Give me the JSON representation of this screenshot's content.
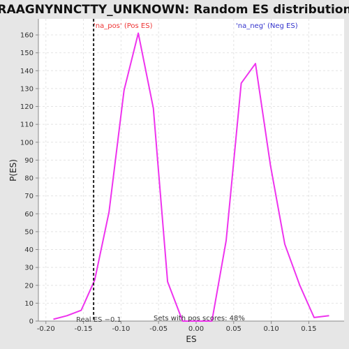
{
  "chart_data": {
    "type": "line",
    "title": "RAAGNYNNCTTY_UNKNOWN: Random ES distribution",
    "xlabel": "ES",
    "ylabel": "P(ES)",
    "xlim": [
      -0.21,
      0.197
    ],
    "ylim": [
      0,
      169
    ],
    "x_ticks": [
      -0.2,
      -0.15,
      -0.1,
      -0.05,
      0.0,
      0.05,
      0.1,
      0.15
    ],
    "x_tick_labels": [
      "-0.20",
      "-0.15",
      "-0.10",
      "-0.05",
      "0.00",
      "0.05",
      "0.10",
      "0.15"
    ],
    "y_ticks": [
      0,
      10,
      20,
      30,
      40,
      50,
      60,
      70,
      80,
      90,
      100,
      110,
      120,
      130,
      140,
      150,
      160
    ],
    "y_tick_labels": [
      "0",
      "10",
      "20",
      "30",
      "40",
      "50",
      "60",
      "70",
      "80",
      "90",
      "100",
      "110",
      "120",
      "130",
      "140",
      "150",
      "160"
    ],
    "grid": true,
    "series": [
      {
        "color": "#ee33ee",
        "x": [
          -0.19,
          -0.172,
          -0.153,
          -0.135,
          -0.116,
          -0.096,
          -0.077,
          -0.057,
          -0.038,
          -0.018,
          0.002,
          0.021,
          0.04,
          0.06,
          0.079,
          0.099,
          0.118,
          0.138,
          0.157,
          0.177
        ],
        "y": [
          1,
          3,
          6,
          23,
          61,
          129,
          161,
          119,
          22,
          0,
          0,
          0,
          45,
          133,
          144,
          87,
          43,
          20,
          2,
          3
        ]
      }
    ],
    "real_es": {
      "value": -0.1365,
      "label": "Real ES −0.1"
    },
    "annotations": {
      "pos_label": "'na_pos' (Pos ES)",
      "pos_color": "#ee3333",
      "neg_label": "'na_neg' (Neg ES)",
      "neg_color": "#3333cc",
      "pos_scores": "Sets with pos scores: 48%"
    }
  }
}
